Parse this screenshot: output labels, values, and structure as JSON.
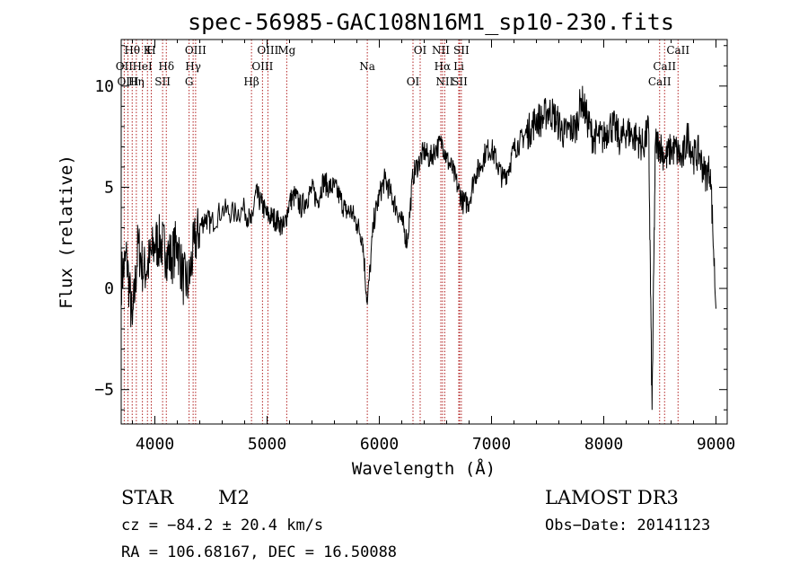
{
  "chart_data": {
    "type": "line",
    "title": "spec-56985-GAC108N16M1_sp10-230.fits",
    "xlabel": "Wavelength (Å)",
    "ylabel": "Flux (relative)",
    "xlim": [
      3700,
      9100
    ],
    "ylim": [
      -6.7,
      12.3
    ],
    "xticks": [
      4000,
      5000,
      6000,
      7000,
      8000,
      9000
    ],
    "xtick_labels": [
      "4000",
      "5000",
      "6000",
      "7000",
      "8000",
      "9000"
    ],
    "yticks": [
      -5,
      0,
      5,
      10
    ],
    "ytick_labels": [
      "−5",
      "0",
      "5",
      "10"
    ],
    "spectrum": {
      "x": [
        3700,
        3750,
        3800,
        3850,
        3900,
        3950,
        4000,
        4050,
        4100,
        4150,
        4200,
        4250,
        4300,
        4350,
        4400,
        4450,
        4500,
        4600,
        4700,
        4800,
        4860,
        4900,
        4950,
        5000,
        5050,
        5100,
        5150,
        5200,
        5250,
        5300,
        5350,
        5400,
        5450,
        5500,
        5550,
        5600,
        5650,
        5700,
        5750,
        5800,
        5850,
        5893,
        5950,
        6000,
        6050,
        6100,
        6150,
        6200,
        6250,
        6300,
        6350,
        6400,
        6450,
        6500,
        6563,
        6600,
        6650,
        6700,
        6750,
        6800,
        6850,
        6900,
        6950,
        7000,
        7050,
        7100,
        7150,
        7200,
        7250,
        7300,
        7350,
        7400,
        7450,
        7500,
        7550,
        7600,
        7650,
        7700,
        7750,
        7800,
        7850,
        7900,
        7950,
        8000,
        8050,
        8100,
        8150,
        8200,
        8250,
        8300,
        8350,
        8400,
        8430,
        8460,
        8500,
        8550,
        8600,
        8650,
        8700,
        8750,
        8800,
        8850,
        8900,
        8950,
        9000
      ],
      "y": [
        0.5,
        1.5,
        -1.8,
        2.2,
        0.8,
        1.3,
        2.2,
        2.3,
        1.8,
        1.5,
        2.3,
        0.5,
        0.2,
        2.2,
        3.0,
        3.5,
        3.2,
        3.9,
        3.7,
        3.9,
        3.2,
        4.7,
        4.2,
        3.6,
        3.5,
        3.3,
        3.0,
        4.3,
        4.6,
        4.0,
        4.4,
        4.9,
        4.3,
        5.3,
        5.0,
        5.0,
        4.5,
        3.8,
        3.8,
        3.2,
        2.5,
        -0.8,
        3.3,
        4.6,
        5.4,
        4.7,
        4.0,
        3.3,
        2.3,
        5.6,
        6.2,
        6.8,
        6.4,
        6.9,
        7.2,
        6.4,
        5.9,
        5.0,
        4.2,
        4.3,
        5.6,
        6.0,
        6.8,
        6.9,
        6.2,
        5.4,
        5.9,
        6.9,
        7.2,
        7.6,
        7.9,
        8.4,
        8.3,
        8.8,
        8.6,
        8.1,
        7.6,
        7.9,
        7.9,
        9.4,
        8.4,
        7.5,
        7.5,
        7.4,
        8.1,
        7.9,
        7.3,
        7.8,
        7.6,
        7.4,
        7.0,
        7.9,
        -6.0,
        7.2,
        7.1,
        6.4,
        6.9,
        6.8,
        6.3,
        7.6,
        6.5,
        6.7,
        5.6,
        5.9,
        -1.0
      ]
    },
    "lines": [
      {
        "name": "Hθ",
        "wave": 3798
      },
      {
        "name": "OII",
        "wave": 3727
      },
      {
        "name": "OIII",
        "wave": 3760
      },
      {
        "name": "K",
        "wave": 3934
      },
      {
        "name": "HeI",
        "wave": 3889
      },
      {
        "name": "Hη",
        "wave": 3835
      },
      {
        "name": "H",
        "wave": 3968
      },
      {
        "name": "Hδ",
        "wave": 4102
      },
      {
        "name": "SII",
        "wave": 4069
      },
      {
        "name": "OIII",
        "wave": 4363
      },
      {
        "name": "Hγ",
        "wave": 4341
      },
      {
        "name": "G",
        "wave": 4305
      },
      {
        "name": "OIII",
        "wave": 5007
      },
      {
        "name": "OIII",
        "wave": 4959
      },
      {
        "name": "Hβ",
        "wave": 4861
      },
      {
        "name": "Mg",
        "wave": 5175
      },
      {
        "name": "Na",
        "wave": 5893
      },
      {
        "name": "OI",
        "wave": 6300
      },
      {
        "name": "OI",
        "wave": 6364
      },
      {
        "name": "Hα",
        "wave": 6563
      },
      {
        "name": "SII",
        "wave": 6716
      },
      {
        "name": "NII",
        "wave": 6548
      },
      {
        "name": "Li",
        "wave": 6708
      },
      {
        "name": "NII",
        "wave": 6583
      },
      {
        "name": "SII",
        "wave": 6731
      },
      {
        "name": "CaII",
        "wave": 8542
      },
      {
        "name": "CaII",
        "wave": 8498
      },
      {
        "name": "CaII",
        "wave": 8662
      }
    ]
  },
  "info": {
    "object_class": "STAR",
    "subclass": "M2",
    "survey": "LAMOST DR3",
    "cz": "cz = −84.2 ± 20.4 km/s",
    "obs_date": "Obs−Date: 20141123",
    "coords": "RA = 106.68167, DEC =  16.50088"
  },
  "colors": {
    "spectrum": "#000000",
    "line_markers": "#b22222",
    "axes": "#000000"
  }
}
